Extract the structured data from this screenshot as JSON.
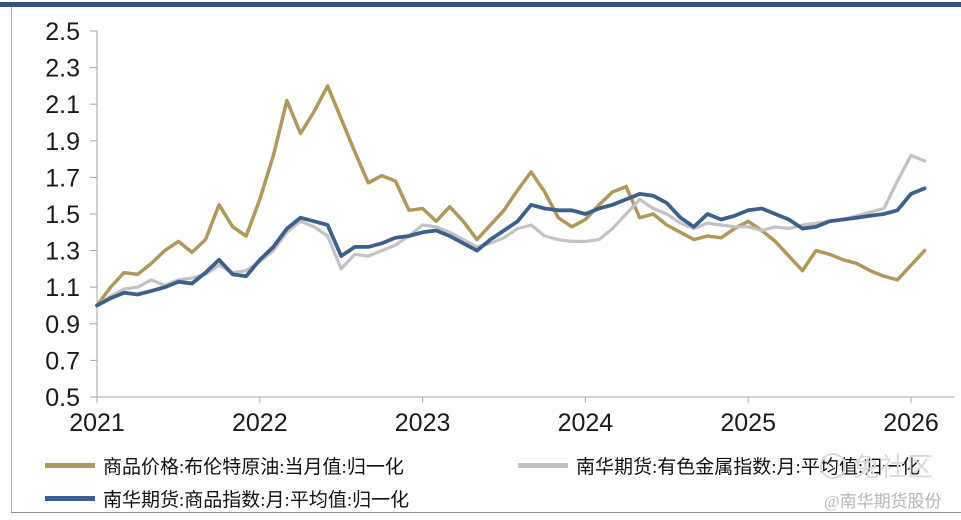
{
  "page": {
    "top_bar_color": "#34537c",
    "background": "#ffffff",
    "axis_color": "#a6a6a6",
    "label_color": "#1a1a1a"
  },
  "watermarks": {
    "community": "兔社区",
    "account": "@南华期货股份"
  },
  "chart_data": {
    "type": "line",
    "title": "",
    "xlabel": "",
    "ylabel": "",
    "grid": false,
    "legend_position": "bottom",
    "ylim": [
      0.5,
      2.5
    ],
    "y_tick_labels": [
      "0.5",
      "0.7",
      "0.9",
      "1.1",
      "1.3",
      "1.5",
      "1.7",
      "1.9",
      "2.1",
      "2.3",
      "2.5"
    ],
    "x_tick_labels": [
      "2021",
      "2022",
      "2023",
      "2024",
      "2025",
      "2026"
    ],
    "x_start": "2021-01",
    "x_end": "2026-02",
    "x_unit": "month",
    "months_per_tick": 12,
    "series": [
      {
        "name": "商品价格:布伦特原油:当月值:归一化",
        "color": "#b0985c",
        "width": 3.5,
        "values": [
          1.0,
          1.1,
          1.18,
          1.17,
          1.23,
          1.3,
          1.35,
          1.29,
          1.36,
          1.55,
          1.43,
          1.38,
          1.58,
          1.82,
          2.12,
          1.94,
          2.06,
          2.2,
          2.02,
          1.84,
          1.67,
          1.71,
          1.68,
          1.52,
          1.53,
          1.46,
          1.54,
          1.46,
          1.36,
          1.44,
          1.52,
          1.63,
          1.73,
          1.62,
          1.48,
          1.43,
          1.47,
          1.55,
          1.62,
          1.65,
          1.48,
          1.5,
          1.44,
          1.4,
          1.36,
          1.38,
          1.37,
          1.42,
          1.46,
          1.41,
          1.35,
          1.27,
          1.19,
          1.3,
          1.28,
          1.25,
          1.23,
          1.19,
          1.16,
          1.14,
          1.22,
          1.3
        ]
      },
      {
        "name": "南华期货:有色金属指数:月:平均值:归一化",
        "color": "#c2c2c5",
        "width": 3.2,
        "values": [
          1.0,
          1.05,
          1.09,
          1.1,
          1.14,
          1.11,
          1.14,
          1.15,
          1.17,
          1.22,
          1.18,
          1.19,
          1.24,
          1.3,
          1.4,
          1.46,
          1.43,
          1.38,
          1.2,
          1.28,
          1.27,
          1.3,
          1.33,
          1.38,
          1.44,
          1.43,
          1.4,
          1.36,
          1.32,
          1.34,
          1.37,
          1.42,
          1.44,
          1.38,
          1.36,
          1.35,
          1.35,
          1.36,
          1.42,
          1.5,
          1.58,
          1.53,
          1.5,
          1.45,
          1.42,
          1.45,
          1.44,
          1.43,
          1.43,
          1.41,
          1.43,
          1.42,
          1.44,
          1.45,
          1.46,
          1.47,
          1.49,
          1.51,
          1.53,
          1.68,
          1.82,
          1.79
        ]
      },
      {
        "name": "南华期货:商品指数:月:平均值:归一化",
        "color": "#3d5f8c",
        "width": 3.8,
        "values": [
          1.0,
          1.04,
          1.07,
          1.06,
          1.08,
          1.1,
          1.13,
          1.12,
          1.18,
          1.25,
          1.17,
          1.16,
          1.25,
          1.32,
          1.42,
          1.48,
          1.46,
          1.44,
          1.27,
          1.32,
          1.32,
          1.34,
          1.37,
          1.38,
          1.4,
          1.41,
          1.38,
          1.34,
          1.3,
          1.36,
          1.41,
          1.46,
          1.55,
          1.53,
          1.52,
          1.52,
          1.5,
          1.53,
          1.55,
          1.58,
          1.61,
          1.6,
          1.56,
          1.48,
          1.43,
          1.5,
          1.47,
          1.49,
          1.52,
          1.53,
          1.5,
          1.47,
          1.42,
          1.43,
          1.46,
          1.47,
          1.48,
          1.49,
          1.5,
          1.52,
          1.61,
          1.64
        ]
      }
    ]
  }
}
